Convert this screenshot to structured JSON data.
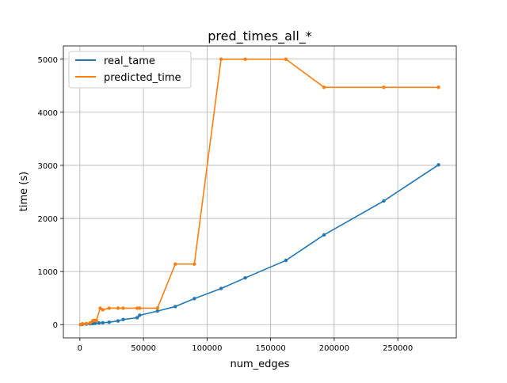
{
  "chart_data": {
    "type": "line",
    "title": "pred_times_all_*",
    "xlabel": "num_edges",
    "ylabel": "time (s)",
    "xlim": [
      -13000,
      296000
    ],
    "ylim": [
      -250,
      5250
    ],
    "xticks": [
      0,
      50000,
      100000,
      150000,
      200000,
      250000
    ],
    "yticks": [
      0,
      1000,
      2000,
      3000,
      4000,
      5000
    ],
    "grid": true,
    "legend_position": "top-left",
    "series": [
      {
        "name": "real_tame",
        "color": "#1f77b4",
        "x": [
          500,
          2000,
          5000,
          8000,
          10000,
          12000,
          15000,
          18000,
          23000,
          30000,
          34000,
          45000,
          47000,
          61000,
          75000,
          90000,
          111000,
          130000,
          162000,
          192000,
          239000,
          282000
        ],
        "y": [
          0,
          5,
          10,
          15,
          20,
          25,
          30,
          35,
          45,
          70,
          95,
          130,
          175,
          255,
          340,
          490,
          680,
          880,
          1210,
          1690,
          2330,
          3010
        ]
      },
      {
        "name": "predicted_time",
        "color": "#ff7f0e",
        "x": [
          500,
          2000,
          5000,
          8000,
          10000,
          11000,
          12000,
          13000,
          16000,
          18000,
          23000,
          30000,
          34000,
          45000,
          47000,
          61000,
          75000,
          90000,
          111000,
          130000,
          162000,
          192000,
          239000,
          282000
        ],
        "y": [
          0,
          15,
          20,
          30,
          70,
          80,
          75,
          80,
          310,
          280,
          310,
          310,
          310,
          310,
          310,
          310,
          1140,
          1140,
          5000,
          5000,
          5000,
          4470,
          4470,
          4470
        ]
      }
    ]
  }
}
